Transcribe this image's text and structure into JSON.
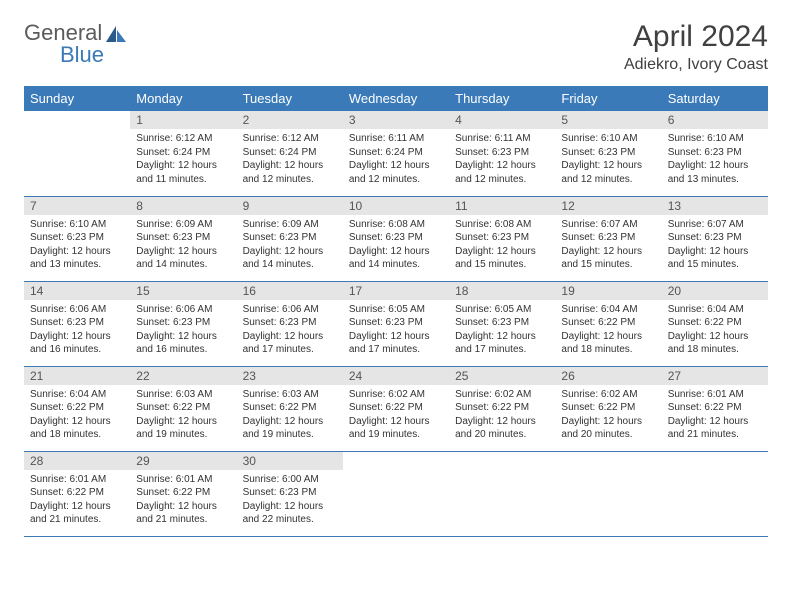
{
  "logo": {
    "part1": "General",
    "part2": "Blue"
  },
  "title": "April 2024",
  "location": "Adiekro, Ivory Coast",
  "colors": {
    "header_bg": "#3a7ab8",
    "header_text": "#ffffff",
    "daynum_bg": "#e5e5e5",
    "daynum_text": "#555555",
    "border": "#3a7ab8",
    "title_text": "#404040",
    "body_text": "#333333",
    "logo_gray": "#5b5b5b",
    "logo_blue": "#3a7ab8",
    "background": "#ffffff"
  },
  "fonts": {
    "title_size": 30,
    "location_size": 16,
    "header_size": 13,
    "daynum_size": 12,
    "data_size": 10,
    "logo_size": 22
  },
  "day_headers": [
    "Sunday",
    "Monday",
    "Tuesday",
    "Wednesday",
    "Thursday",
    "Friday",
    "Saturday"
  ],
  "weeks": [
    [
      null,
      {
        "n": "1",
        "sr": "6:12 AM",
        "ss": "6:24 PM",
        "dl": "12 hours and 11 minutes."
      },
      {
        "n": "2",
        "sr": "6:12 AM",
        "ss": "6:24 PM",
        "dl": "12 hours and 12 minutes."
      },
      {
        "n": "3",
        "sr": "6:11 AM",
        "ss": "6:24 PM",
        "dl": "12 hours and 12 minutes."
      },
      {
        "n": "4",
        "sr": "6:11 AM",
        "ss": "6:23 PM",
        "dl": "12 hours and 12 minutes."
      },
      {
        "n": "5",
        "sr": "6:10 AM",
        "ss": "6:23 PM",
        "dl": "12 hours and 12 minutes."
      },
      {
        "n": "6",
        "sr": "6:10 AM",
        "ss": "6:23 PM",
        "dl": "12 hours and 13 minutes."
      }
    ],
    [
      {
        "n": "7",
        "sr": "6:10 AM",
        "ss": "6:23 PM",
        "dl": "12 hours and 13 minutes."
      },
      {
        "n": "8",
        "sr": "6:09 AM",
        "ss": "6:23 PM",
        "dl": "12 hours and 14 minutes."
      },
      {
        "n": "9",
        "sr": "6:09 AM",
        "ss": "6:23 PM",
        "dl": "12 hours and 14 minutes."
      },
      {
        "n": "10",
        "sr": "6:08 AM",
        "ss": "6:23 PM",
        "dl": "12 hours and 14 minutes."
      },
      {
        "n": "11",
        "sr": "6:08 AM",
        "ss": "6:23 PM",
        "dl": "12 hours and 15 minutes."
      },
      {
        "n": "12",
        "sr": "6:07 AM",
        "ss": "6:23 PM",
        "dl": "12 hours and 15 minutes."
      },
      {
        "n": "13",
        "sr": "6:07 AM",
        "ss": "6:23 PM",
        "dl": "12 hours and 15 minutes."
      }
    ],
    [
      {
        "n": "14",
        "sr": "6:06 AM",
        "ss": "6:23 PM",
        "dl": "12 hours and 16 minutes."
      },
      {
        "n": "15",
        "sr": "6:06 AM",
        "ss": "6:23 PM",
        "dl": "12 hours and 16 minutes."
      },
      {
        "n": "16",
        "sr": "6:06 AM",
        "ss": "6:23 PM",
        "dl": "12 hours and 17 minutes."
      },
      {
        "n": "17",
        "sr": "6:05 AM",
        "ss": "6:23 PM",
        "dl": "12 hours and 17 minutes."
      },
      {
        "n": "18",
        "sr": "6:05 AM",
        "ss": "6:23 PM",
        "dl": "12 hours and 17 minutes."
      },
      {
        "n": "19",
        "sr": "6:04 AM",
        "ss": "6:22 PM",
        "dl": "12 hours and 18 minutes."
      },
      {
        "n": "20",
        "sr": "6:04 AM",
        "ss": "6:22 PM",
        "dl": "12 hours and 18 minutes."
      }
    ],
    [
      {
        "n": "21",
        "sr": "6:04 AM",
        "ss": "6:22 PM",
        "dl": "12 hours and 18 minutes."
      },
      {
        "n": "22",
        "sr": "6:03 AM",
        "ss": "6:22 PM",
        "dl": "12 hours and 19 minutes."
      },
      {
        "n": "23",
        "sr": "6:03 AM",
        "ss": "6:22 PM",
        "dl": "12 hours and 19 minutes."
      },
      {
        "n": "24",
        "sr": "6:02 AM",
        "ss": "6:22 PM",
        "dl": "12 hours and 19 minutes."
      },
      {
        "n": "25",
        "sr": "6:02 AM",
        "ss": "6:22 PM",
        "dl": "12 hours and 20 minutes."
      },
      {
        "n": "26",
        "sr": "6:02 AM",
        "ss": "6:22 PM",
        "dl": "12 hours and 20 minutes."
      },
      {
        "n": "27",
        "sr": "6:01 AM",
        "ss": "6:22 PM",
        "dl": "12 hours and 21 minutes."
      }
    ],
    [
      {
        "n": "28",
        "sr": "6:01 AM",
        "ss": "6:22 PM",
        "dl": "12 hours and 21 minutes."
      },
      {
        "n": "29",
        "sr": "6:01 AM",
        "ss": "6:22 PM",
        "dl": "12 hours and 21 minutes."
      },
      {
        "n": "30",
        "sr": "6:00 AM",
        "ss": "6:23 PM",
        "dl": "12 hours and 22 minutes."
      },
      null,
      null,
      null,
      null
    ]
  ],
  "labels": {
    "sunrise": "Sunrise:",
    "sunset": "Sunset:",
    "daylight": "Daylight:"
  }
}
